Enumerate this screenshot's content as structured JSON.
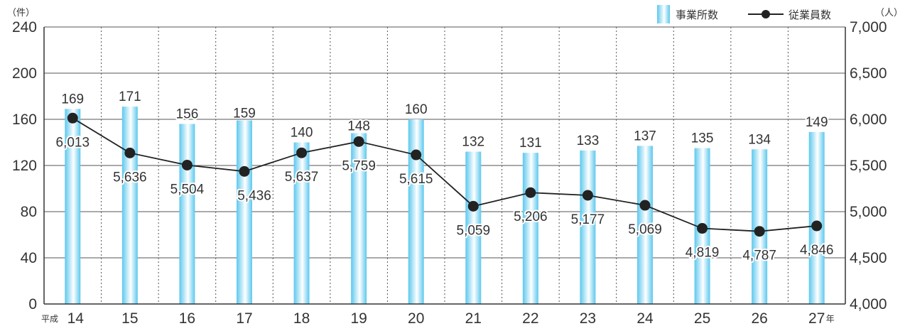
{
  "chart_data": {
    "type": "bar+line",
    "categories": [
      "14",
      "15",
      "16",
      "17",
      "18",
      "19",
      "20",
      "21",
      "22",
      "23",
      "24",
      "25",
      "26",
      "27"
    ],
    "era_prefix": "平成",
    "year_suffix": "年",
    "series": [
      {
        "name": "事業所数",
        "type": "bar",
        "axis": "left",
        "values": [
          169,
          171,
          156,
          159,
          140,
          148,
          160,
          132,
          131,
          133,
          137,
          135,
          134,
          149
        ]
      },
      {
        "name": "従業員数",
        "type": "line",
        "axis": "right",
        "values": [
          6013,
          5636,
          5504,
          5436,
          5637,
          5759,
          5615,
          5059,
          5206,
          5177,
          5069,
          4819,
          4787,
          4846
        ],
        "labels": [
          "6,013",
          "5,636",
          "5,504",
          "5,436",
          "5,637",
          "5,759",
          "5,615",
          "5,059",
          "5,206",
          "5,177",
          "5,069",
          "4,819",
          "4,787",
          "4,846"
        ]
      }
    ],
    "y_left": {
      "unit": "（件）",
      "range": [
        0,
        240
      ],
      "ticks": [
        "0",
        "40",
        "80",
        "120",
        "160",
        "200",
        "240"
      ]
    },
    "y_right": {
      "unit": "（人）",
      "range": [
        4000,
        7000
      ],
      "ticks": [
        "4,000",
        "4,500",
        "5,000",
        "5,500",
        "6,000",
        "6,500",
        "7,000"
      ]
    },
    "legend_position": "top-right",
    "grid": {
      "horizontal": "solid",
      "vertical": "dotted"
    },
    "colors": {
      "bar_edge": "#5cc8ee",
      "bar_center": "#ffffff",
      "line": "#222222",
      "grid": "#555555"
    }
  }
}
